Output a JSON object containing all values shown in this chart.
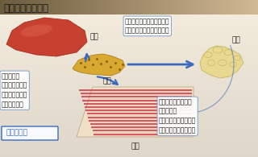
{
  "title": "インスリンの働き",
  "label_liver": "肝臓",
  "label_pancreas": "膵臓",
  "label_muscle": "筋肉",
  "label_fat": "脂肪",
  "label_insulin": "インスリン",
  "text_liver": "ブドウ糖を\nグリコーゲンに\n変えて貯蔵し、\n分解を抑える",
  "text_fat_top": "糖を取り込ませる、脂肪の\n合成を促し、分解を抑える",
  "text_muscle": "糖を取り込ませる、\nブドウ糖を\nグリコーゲンに変えて\n貯蔵し、分解を抑える",
  "arrow_color": "#3a6abf",
  "box_edge_color": "#7799cc",
  "font_color": "#222222"
}
